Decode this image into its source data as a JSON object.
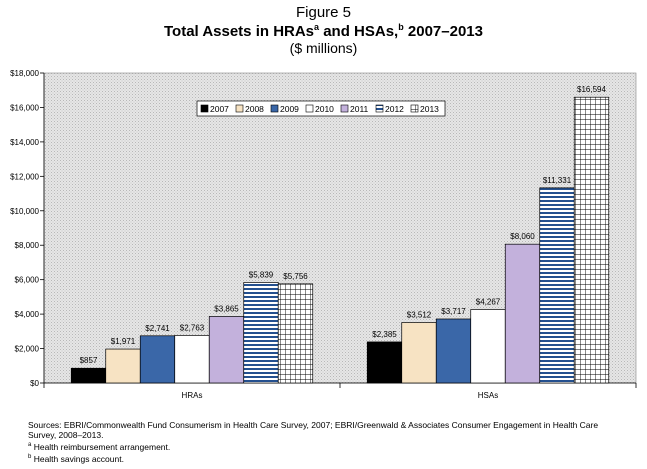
{
  "figure_label": "Figure 5",
  "title": {
    "main": "Total Assets in HRAs",
    "sup_a": "a",
    "mid": " and HSAs,",
    "sup_b": "b",
    "end": " 2007–2013"
  },
  "subtitle": "($ millions)",
  "chart_data": {
    "type": "bar",
    "categories": [
      "HRAs",
      "HSAs"
    ],
    "series": [
      {
        "name": "2007",
        "values": [
          857,
          2385
        ],
        "labels": [
          "$857",
          "$2,385"
        ]
      },
      {
        "name": "2008",
        "values": [
          1971,
          3512
        ],
        "labels": [
          "$1,971",
          "$3,512"
        ]
      },
      {
        "name": "2009",
        "values": [
          2741,
          3717
        ],
        "labels": [
          "$2,741",
          "$3,717"
        ]
      },
      {
        "name": "2010",
        "values": [
          2763,
          4267
        ],
        "labels": [
          "$2,763",
          "$4,267"
        ]
      },
      {
        "name": "2011",
        "values": [
          3865,
          8060
        ],
        "labels": [
          "$3,865",
          "$8,060"
        ]
      },
      {
        "name": "2012",
        "values": [
          5839,
          11331
        ],
        "labels": [
          "$5,839",
          "$11,331"
        ]
      },
      {
        "name": "2013",
        "values": [
          5756,
          16594
        ],
        "labels": [
          "$5,756",
          "$16,594"
        ]
      }
    ],
    "ylim": [
      0,
      18000
    ],
    "yticks": [
      0,
      2000,
      4000,
      6000,
      8000,
      10000,
      12000,
      14000,
      16000,
      18000
    ],
    "ytick_labels": [
      "$0",
      "$2,000",
      "$4,000",
      "$6,000",
      "$8,000",
      "$10,000",
      "$12,000",
      "$14,000",
      "$16,000",
      "$18,000"
    ],
    "legend_position": "top-center",
    "plot_background": "stippled gray",
    "series_fills": [
      "solid black",
      "light tan",
      "blue",
      "white",
      "lavender",
      "blue horizontal stripes",
      "black grid"
    ]
  },
  "colors": {
    "2007": "#000000",
    "2008": "#f7e3c3",
    "2009": "#3a67a8",
    "2010": "#ffffff",
    "2011": "#c3b1dc",
    "2012": "#24508f",
    "2013": "#000000"
  },
  "notes": {
    "sources": "Sources: EBRI/Commonwealth Fund Consumerism in Health Care Survey, 2007; EBRI/Greenwald & Associates Consumer Engagement in Health Care Survey, 2008–2013.",
    "note_a_marker": "a",
    "note_a": " Health reimbursement arrangement.",
    "note_b_marker": "b",
    "note_b": " Health savings account."
  }
}
